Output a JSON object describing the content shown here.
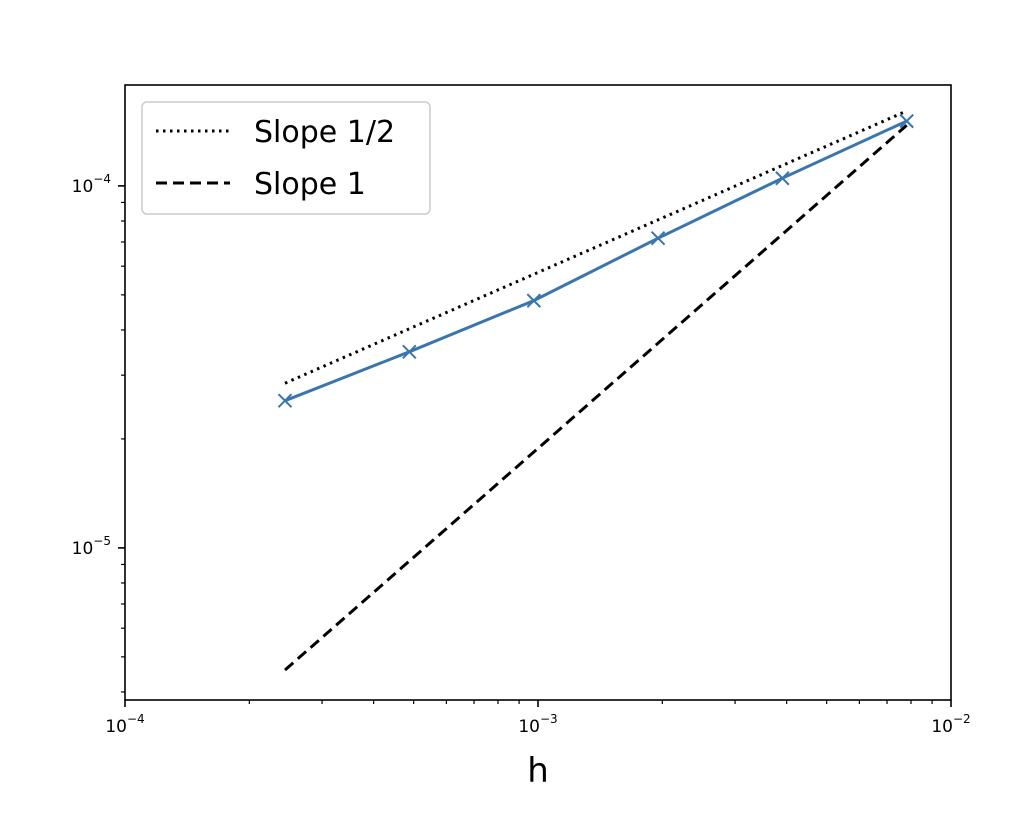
{
  "chart_data": {
    "type": "line",
    "title": "",
    "xlabel": "h",
    "ylabel": "",
    "xscale": "log",
    "yscale": "log",
    "xlim": [
      0.0001,
      0.01
    ],
    "ylim": [
      3.8e-06,
      0.00019
    ],
    "x_ticks": [
      {
        "value": 0.0001,
        "base": "10",
        "exp": "−4"
      },
      {
        "value": 0.001,
        "base": "10",
        "exp": "−3"
      },
      {
        "value": 0.01,
        "base": "10",
        "exp": "−2"
      }
    ],
    "y_ticks": [
      {
        "value": 1e-05,
        "base": "10",
        "exp": "−5"
      },
      {
        "value": 0.0001,
        "base": "10",
        "exp": "−4"
      }
    ],
    "grid": false,
    "legend_position": "upper left",
    "series": [
      {
        "name": "",
        "color": "#3a76ad",
        "style": "solid",
        "marker": "x",
        "x": [
          0.000244,
          0.000488,
          0.000977,
          0.001953,
          0.003906,
          0.0078125
        ],
        "y": [
          2.55e-05,
          3.48e-05,
          4.82e-05,
          7.17e-05,
          0.000105,
          0.000151
        ]
      },
      {
        "name": "Slope 1/2",
        "color": "#000000",
        "style": "dotted",
        "marker": "",
        "x": [
          0.000244,
          0.0078125
        ],
        "y": [
          2.85e-05,
          0.000161
        ]
      },
      {
        "name": "Slope 1",
        "color": "#000000",
        "style": "dashed",
        "marker": "",
        "x": [
          0.000244,
          0.0078125
        ],
        "y": [
          4.6e-06,
          0.000147
        ]
      }
    ]
  }
}
